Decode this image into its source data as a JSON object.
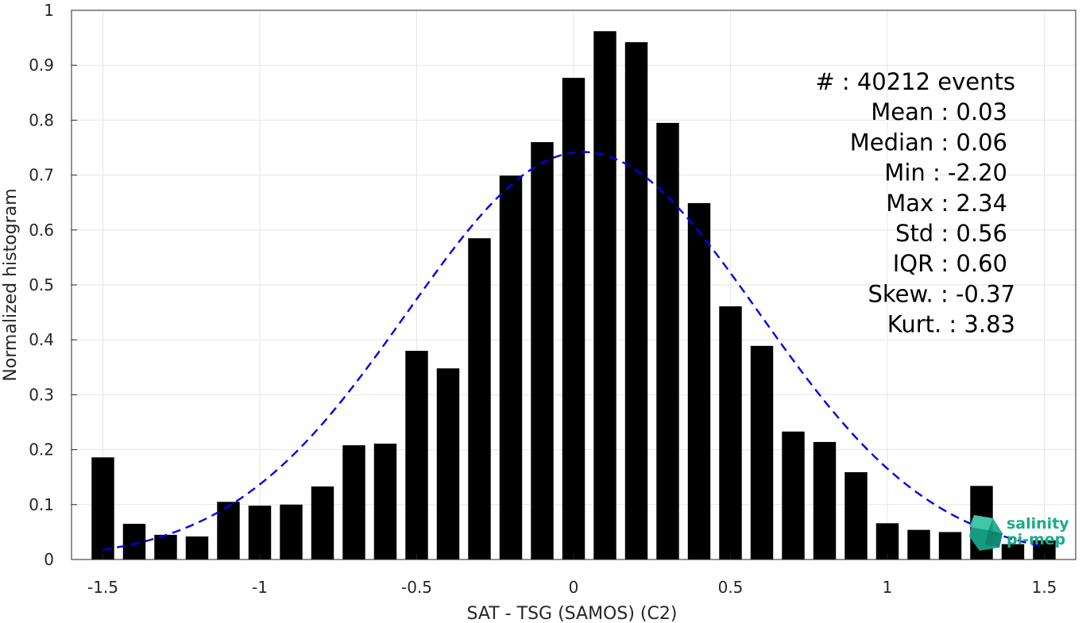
{
  "chart_data": {
    "type": "bar",
    "xlabel": "SAT - TSG (SAMOS) (C2)",
    "ylabel": "Normalized histogram",
    "xlim": [
      -1.6,
      1.6
    ],
    "ylim": [
      0,
      1
    ],
    "grid": true,
    "x_ticks": [
      "-1.5",
      "-1",
      "-0.5",
      "0",
      "0.5",
      "1",
      "1.5"
    ],
    "y_ticks": [
      "0",
      "0.1",
      "0.2",
      "0.3",
      "0.4",
      "0.5",
      "0.6",
      "0.7",
      "0.8",
      "0.9",
      "1"
    ],
    "bar_color": "#000000",
    "bars": {
      "x": [
        -1.5,
        -1.4,
        -1.3,
        -1.2,
        -1.1,
        -1.0,
        -0.9,
        -0.8,
        -0.7,
        -0.6,
        -0.5,
        -0.4,
        -0.3,
        -0.2,
        -0.1,
        0.0,
        0.1,
        0.2,
        0.3,
        0.4,
        0.5,
        0.6,
        0.7,
        0.8,
        0.9,
        1.0,
        1.1,
        1.2,
        1.3,
        1.4,
        1.5
      ],
      "values": [
        0.186,
        0.065,
        0.045,
        0.042,
        0.105,
        0.098,
        0.1,
        0.133,
        0.208,
        0.211,
        0.38,
        0.348,
        0.585,
        0.699,
        0.76,
        0.877,
        0.962,
        0.942,
        0.795,
        0.649,
        0.461,
        0.389,
        0.233,
        0.214,
        0.159,
        0.066,
        0.054,
        0.05,
        0.134,
        0.028,
        0.035
      ]
    },
    "fit_curve": {
      "type": "normal",
      "mean": 0.03,
      "std": 0.56,
      "peak": 0.742,
      "x_range": [
        -1.5,
        1.5
      ],
      "color": "#0000ee",
      "style": "dashed"
    },
    "stats": [
      {
        "label": "#  : 40212 events"
      },
      {
        "label": "Mean : 0.03"
      },
      {
        "label": "Median : 0.06"
      },
      {
        "label": "Min : -2.20"
      },
      {
        "label": "Max : 2.34"
      },
      {
        "label": "Std : 0.56"
      },
      {
        "label": "IQR : 0.60"
      },
      {
        "label": "Skew. : -0.37"
      },
      {
        "label": "Kurt. : 3.83"
      }
    ]
  },
  "logo": {
    "line1": "salinity",
    "line2": "pi-mep",
    "color": "#1aaa8a"
  }
}
